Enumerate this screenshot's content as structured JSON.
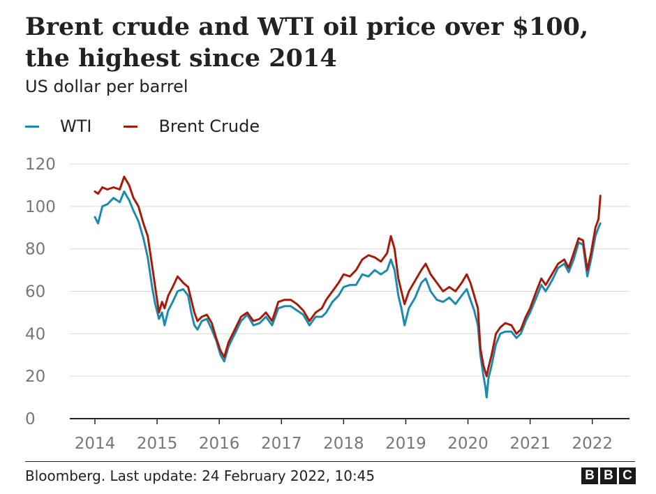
{
  "title_lines": [
    "Brent crude and WTI oil price over $100,",
    "the highest since 2014"
  ],
  "subtitle": "US dollar per barrel",
  "source": "Bloomberg. Last update: 24 February 2022, 10:45",
  "logo_letters": [
    "B",
    "B",
    "C"
  ],
  "colors": {
    "wti": "#1c8ab0",
    "brent": "#a61b08",
    "grid": "#d9d9d9",
    "axis": "#222222",
    "tick_text": "#777777"
  },
  "chart_data": {
    "type": "line",
    "title": "Brent crude and WTI oil price over $100, the highest since 2014",
    "ylabel": "US dollar per barrel",
    "xlabel": "",
    "xlim": [
      2014.0,
      2022.8
    ],
    "ylim": [
      0,
      120
    ],
    "grid": true,
    "legend_position": "top-left",
    "x_ticks": [
      2014,
      2015,
      2016,
      2017,
      2018,
      2019,
      2020,
      2021,
      2022
    ],
    "x_tick_labels": [
      "2014",
      "2015",
      "2016",
      "2017",
      "2018",
      "2019",
      "2020",
      "2021",
      "2022"
    ],
    "y_ticks": [
      0,
      20,
      40,
      60,
      80,
      100,
      120
    ],
    "y_tick_labels": [
      "0",
      "20",
      "40",
      "60",
      "80",
      "100",
      "120"
    ],
    "series": [
      {
        "name": "WTI",
        "color": "#1c8ab0",
        "points": [
          [
            2014.0,
            95
          ],
          [
            2014.05,
            92
          ],
          [
            2014.12,
            100
          ],
          [
            2014.2,
            101
          ],
          [
            2014.3,
            104
          ],
          [
            2014.4,
            102
          ],
          [
            2014.47,
            107
          ],
          [
            2014.55,
            103
          ],
          [
            2014.62,
            98
          ],
          [
            2014.7,
            93
          ],
          [
            2014.78,
            85
          ],
          [
            2014.85,
            76
          ],
          [
            2014.92,
            62
          ],
          [
            2014.97,
            54
          ],
          [
            2015.03,
            47
          ],
          [
            2015.08,
            50
          ],
          [
            2015.12,
            44
          ],
          [
            2015.18,
            51
          ],
          [
            2015.25,
            55
          ],
          [
            2015.33,
            60
          ],
          [
            2015.42,
            61
          ],
          [
            2015.5,
            58
          ],
          [
            2015.55,
            50
          ],
          [
            2015.6,
            44
          ],
          [
            2015.65,
            42
          ],
          [
            2015.72,
            46
          ],
          [
            2015.8,
            47
          ],
          [
            2015.88,
            42
          ],
          [
            2015.95,
            37
          ],
          [
            2016.02,
            30
          ],
          [
            2016.08,
            27
          ],
          [
            2016.15,
            34
          ],
          [
            2016.25,
            40
          ],
          [
            2016.35,
            46
          ],
          [
            2016.45,
            49
          ],
          [
            2016.55,
            44
          ],
          [
            2016.65,
            45
          ],
          [
            2016.75,
            48
          ],
          [
            2016.85,
            44
          ],
          [
            2016.95,
            52
          ],
          [
            2017.05,
            53
          ],
          [
            2017.15,
            53
          ],
          [
            2017.25,
            51
          ],
          [
            2017.35,
            49
          ],
          [
            2017.45,
            44
          ],
          [
            2017.55,
            48
          ],
          [
            2017.65,
            48
          ],
          [
            2017.72,
            50
          ],
          [
            2017.82,
            55
          ],
          [
            2017.92,
            58
          ],
          [
            2018.0,
            62
          ],
          [
            2018.1,
            63
          ],
          [
            2018.2,
            63
          ],
          [
            2018.3,
            68
          ],
          [
            2018.4,
            67
          ],
          [
            2018.5,
            70
          ],
          [
            2018.6,
            68
          ],
          [
            2018.7,
            70
          ],
          [
            2018.76,
            75
          ],
          [
            2018.82,
            70
          ],
          [
            2018.88,
            58
          ],
          [
            2018.93,
            52
          ],
          [
            2018.98,
            44
          ],
          [
            2019.05,
            52
          ],
          [
            2019.15,
            57
          ],
          [
            2019.25,
            64
          ],
          [
            2019.32,
            66
          ],
          [
            2019.4,
            60
          ],
          [
            2019.5,
            56
          ],
          [
            2019.6,
            55
          ],
          [
            2019.7,
            57
          ],
          [
            2019.8,
            54
          ],
          [
            2019.9,
            58
          ],
          [
            2019.98,
            61
          ],
          [
            2020.04,
            56
          ],
          [
            2020.1,
            51
          ],
          [
            2020.16,
            44
          ],
          [
            2020.2,
            30
          ],
          [
            2020.25,
            20
          ],
          [
            2020.28,
            15
          ],
          [
            2020.3,
            10
          ],
          [
            2020.33,
            19
          ],
          [
            2020.38,
            25
          ],
          [
            2020.45,
            35
          ],
          [
            2020.52,
            40
          ],
          [
            2020.6,
            41
          ],
          [
            2020.7,
            41
          ],
          [
            2020.78,
            38
          ],
          [
            2020.85,
            40
          ],
          [
            2020.93,
            46
          ],
          [
            2021.0,
            50
          ],
          [
            2021.1,
            57
          ],
          [
            2021.18,
            63
          ],
          [
            2021.25,
            60
          ],
          [
            2021.35,
            65
          ],
          [
            2021.45,
            71
          ],
          [
            2021.55,
            73
          ],
          [
            2021.62,
            69
          ],
          [
            2021.7,
            75
          ],
          [
            2021.78,
            83
          ],
          [
            2021.85,
            82
          ],
          [
            2021.92,
            67
          ],
          [
            2021.98,
            75
          ],
          [
            2022.05,
            86
          ],
          [
            2022.1,
            90
          ],
          [
            2022.13,
            92
          ]
        ]
      },
      {
        "name": "Brent Crude",
        "color": "#a61b08",
        "points": [
          [
            2014.0,
            107
          ],
          [
            2014.05,
            106
          ],
          [
            2014.12,
            109
          ],
          [
            2014.2,
            108
          ],
          [
            2014.3,
            109
          ],
          [
            2014.4,
            108
          ],
          [
            2014.47,
            114
          ],
          [
            2014.55,
            110
          ],
          [
            2014.62,
            104
          ],
          [
            2014.7,
            100
          ],
          [
            2014.78,
            92
          ],
          [
            2014.85,
            86
          ],
          [
            2014.92,
            72
          ],
          [
            2014.97,
            62
          ],
          [
            2015.03,
            50
          ],
          [
            2015.08,
            55
          ],
          [
            2015.12,
            52
          ],
          [
            2015.18,
            58
          ],
          [
            2015.25,
            62
          ],
          [
            2015.33,
            67
          ],
          [
            2015.42,
            64
          ],
          [
            2015.5,
            62
          ],
          [
            2015.55,
            56
          ],
          [
            2015.6,
            50
          ],
          [
            2015.65,
            46
          ],
          [
            2015.72,
            48
          ],
          [
            2015.8,
            49
          ],
          [
            2015.88,
            45
          ],
          [
            2015.95,
            38
          ],
          [
            2016.02,
            32
          ],
          [
            2016.08,
            29
          ],
          [
            2016.15,
            36
          ],
          [
            2016.25,
            42
          ],
          [
            2016.35,
            48
          ],
          [
            2016.45,
            50
          ],
          [
            2016.55,
            46
          ],
          [
            2016.65,
            47
          ],
          [
            2016.75,
            50
          ],
          [
            2016.85,
            46
          ],
          [
            2016.95,
            55
          ],
          [
            2017.05,
            56
          ],
          [
            2017.15,
            56
          ],
          [
            2017.25,
            54
          ],
          [
            2017.35,
            51
          ],
          [
            2017.45,
            46
          ],
          [
            2017.55,
            50
          ],
          [
            2017.65,
            52
          ],
          [
            2017.72,
            56
          ],
          [
            2017.82,
            60
          ],
          [
            2017.92,
            64
          ],
          [
            2018.0,
            68
          ],
          [
            2018.1,
            67
          ],
          [
            2018.2,
            70
          ],
          [
            2018.3,
            75
          ],
          [
            2018.4,
            77
          ],
          [
            2018.5,
            76
          ],
          [
            2018.6,
            74
          ],
          [
            2018.7,
            78
          ],
          [
            2018.76,
            86
          ],
          [
            2018.82,
            80
          ],
          [
            2018.88,
            66
          ],
          [
            2018.93,
            60
          ],
          [
            2018.98,
            54
          ],
          [
            2019.05,
            60
          ],
          [
            2019.15,
            65
          ],
          [
            2019.25,
            70
          ],
          [
            2019.32,
            73
          ],
          [
            2019.4,
            68
          ],
          [
            2019.5,
            64
          ],
          [
            2019.6,
            60
          ],
          [
            2019.7,
            62
          ],
          [
            2019.8,
            60
          ],
          [
            2019.9,
            64
          ],
          [
            2019.98,
            68
          ],
          [
            2020.04,
            64
          ],
          [
            2020.1,
            58
          ],
          [
            2020.16,
            52
          ],
          [
            2020.2,
            33
          ],
          [
            2020.25,
            25
          ],
          [
            2020.28,
            22
          ],
          [
            2020.3,
            20
          ],
          [
            2020.33,
            24
          ],
          [
            2020.38,
            30
          ],
          [
            2020.45,
            40
          ],
          [
            2020.52,
            43
          ],
          [
            2020.6,
            45
          ],
          [
            2020.7,
            44
          ],
          [
            2020.78,
            40
          ],
          [
            2020.85,
            42
          ],
          [
            2020.93,
            48
          ],
          [
            2021.0,
            52
          ],
          [
            2021.1,
            60
          ],
          [
            2021.18,
            66
          ],
          [
            2021.25,
            63
          ],
          [
            2021.35,
            68
          ],
          [
            2021.45,
            73
          ],
          [
            2021.55,
            75
          ],
          [
            2021.62,
            71
          ],
          [
            2021.7,
            78
          ],
          [
            2021.78,
            85
          ],
          [
            2021.85,
            84
          ],
          [
            2021.92,
            70
          ],
          [
            2021.98,
            78
          ],
          [
            2022.05,
            90
          ],
          [
            2022.1,
            94
          ],
          [
            2022.13,
            105
          ]
        ]
      }
    ]
  }
}
